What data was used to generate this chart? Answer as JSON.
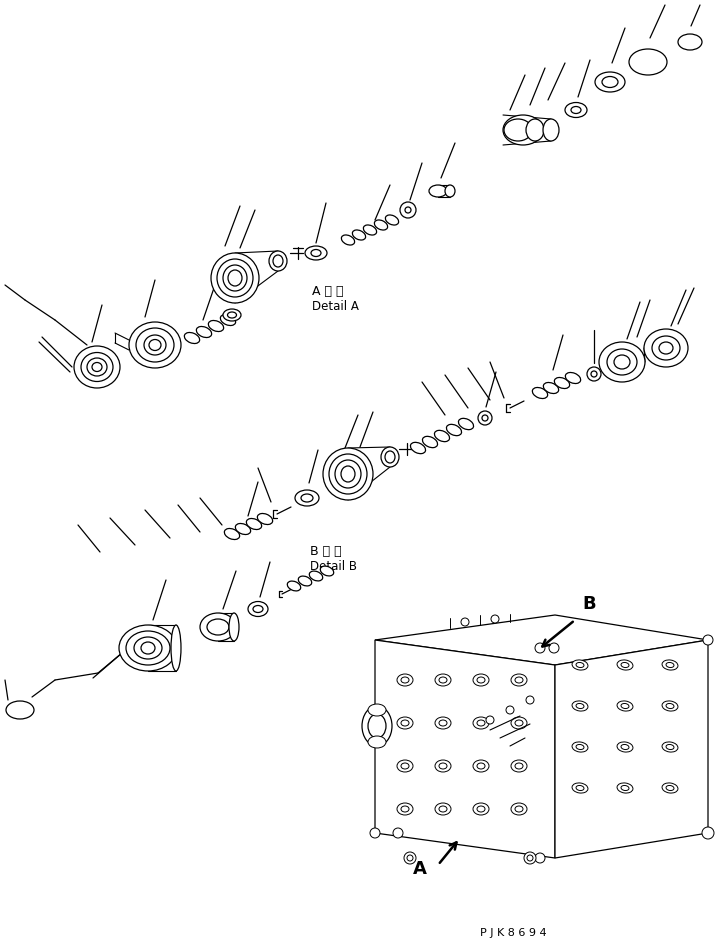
{
  "background_color": "#ffffff",
  "line_color": "#000000",
  "label_A_jp": "A 詳 細",
  "label_A_en": "Detail A",
  "label_B_jp": "B 詳 細",
  "label_B_en": "Detail B",
  "label_A_arrow": "A",
  "label_B_arrow": "B",
  "watermark": "P J K 8 6 9 4",
  "fig_width": 7.16,
  "fig_height": 9.47,
  "dpi": 100
}
